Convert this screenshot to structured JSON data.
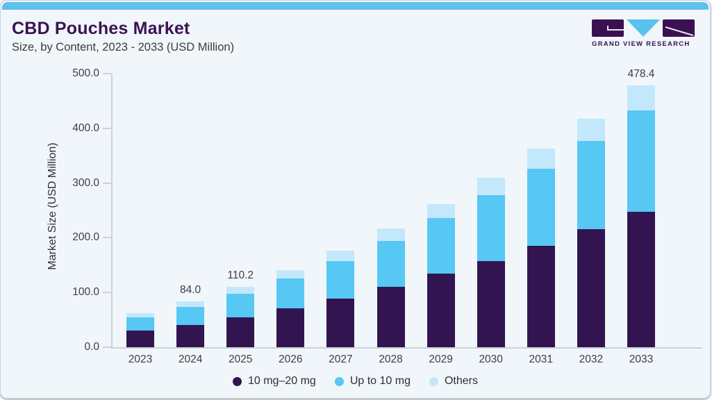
{
  "page": {
    "title": "CBD Pouches Market",
    "subtitle": "Size, by Content, 2023 - 2033 (USD Million)",
    "accent_color": "#5fc0ec",
    "card_bg": "#f0f6fa"
  },
  "logo": {
    "brand": "GRAND VIEW RESEARCH",
    "purple": "#3a1053",
    "blue": "#58c3ee"
  },
  "chart_data": {
    "type": "bar",
    "stacked": true,
    "title": "CBD Pouches Market Size, by Content, 2023 - 2033 (USD Million)",
    "xlabel": "",
    "ylabel": "Market Size (USD Million)",
    "ylim": [
      0,
      500
    ],
    "yticks": [
      "0.0",
      "100.0",
      "200.0",
      "300.0",
      "400.0",
      "500.0"
    ],
    "grid": false,
    "legend_position": "bottom",
    "categories": [
      "2023",
      "2024",
      "2025",
      "2026",
      "2027",
      "2028",
      "2029",
      "2030",
      "2031",
      "2032",
      "2033"
    ],
    "series": [
      {
        "name": "10 mg–20 mg",
        "color": "#321550",
        "values": [
          30.2,
          40.3,
          54.0,
          71.0,
          89.0,
          110.0,
          134.0,
          157.0,
          185.0,
          215.5,
          248.0
        ]
      },
      {
        "name": "Up to 10 mg",
        "color": "#57c7f4",
        "values": [
          24.1,
          33.2,
          43.5,
          54.5,
          68.5,
          84.5,
          102.0,
          121.5,
          141.5,
          161.5,
          184.9
        ]
      },
      {
        "name": "Others",
        "color": "#c4e8fb",
        "values": [
          7.6,
          10.5,
          12.7,
          15.0,
          19.0,
          22.5,
          26.0,
          31.0,
          36.0,
          40.5,
          45.5
        ]
      }
    ],
    "totals": [
      61.9,
      84.0,
      110.2,
      140.5,
      176.5,
      217.0,
      262.0,
      309.5,
      362.5,
      417.5,
      478.4
    ],
    "total_labels": [
      "",
      "84.0",
      "110.2",
      "",
      "",
      "",
      "",
      "",
      "",
      "",
      "478.4"
    ]
  }
}
